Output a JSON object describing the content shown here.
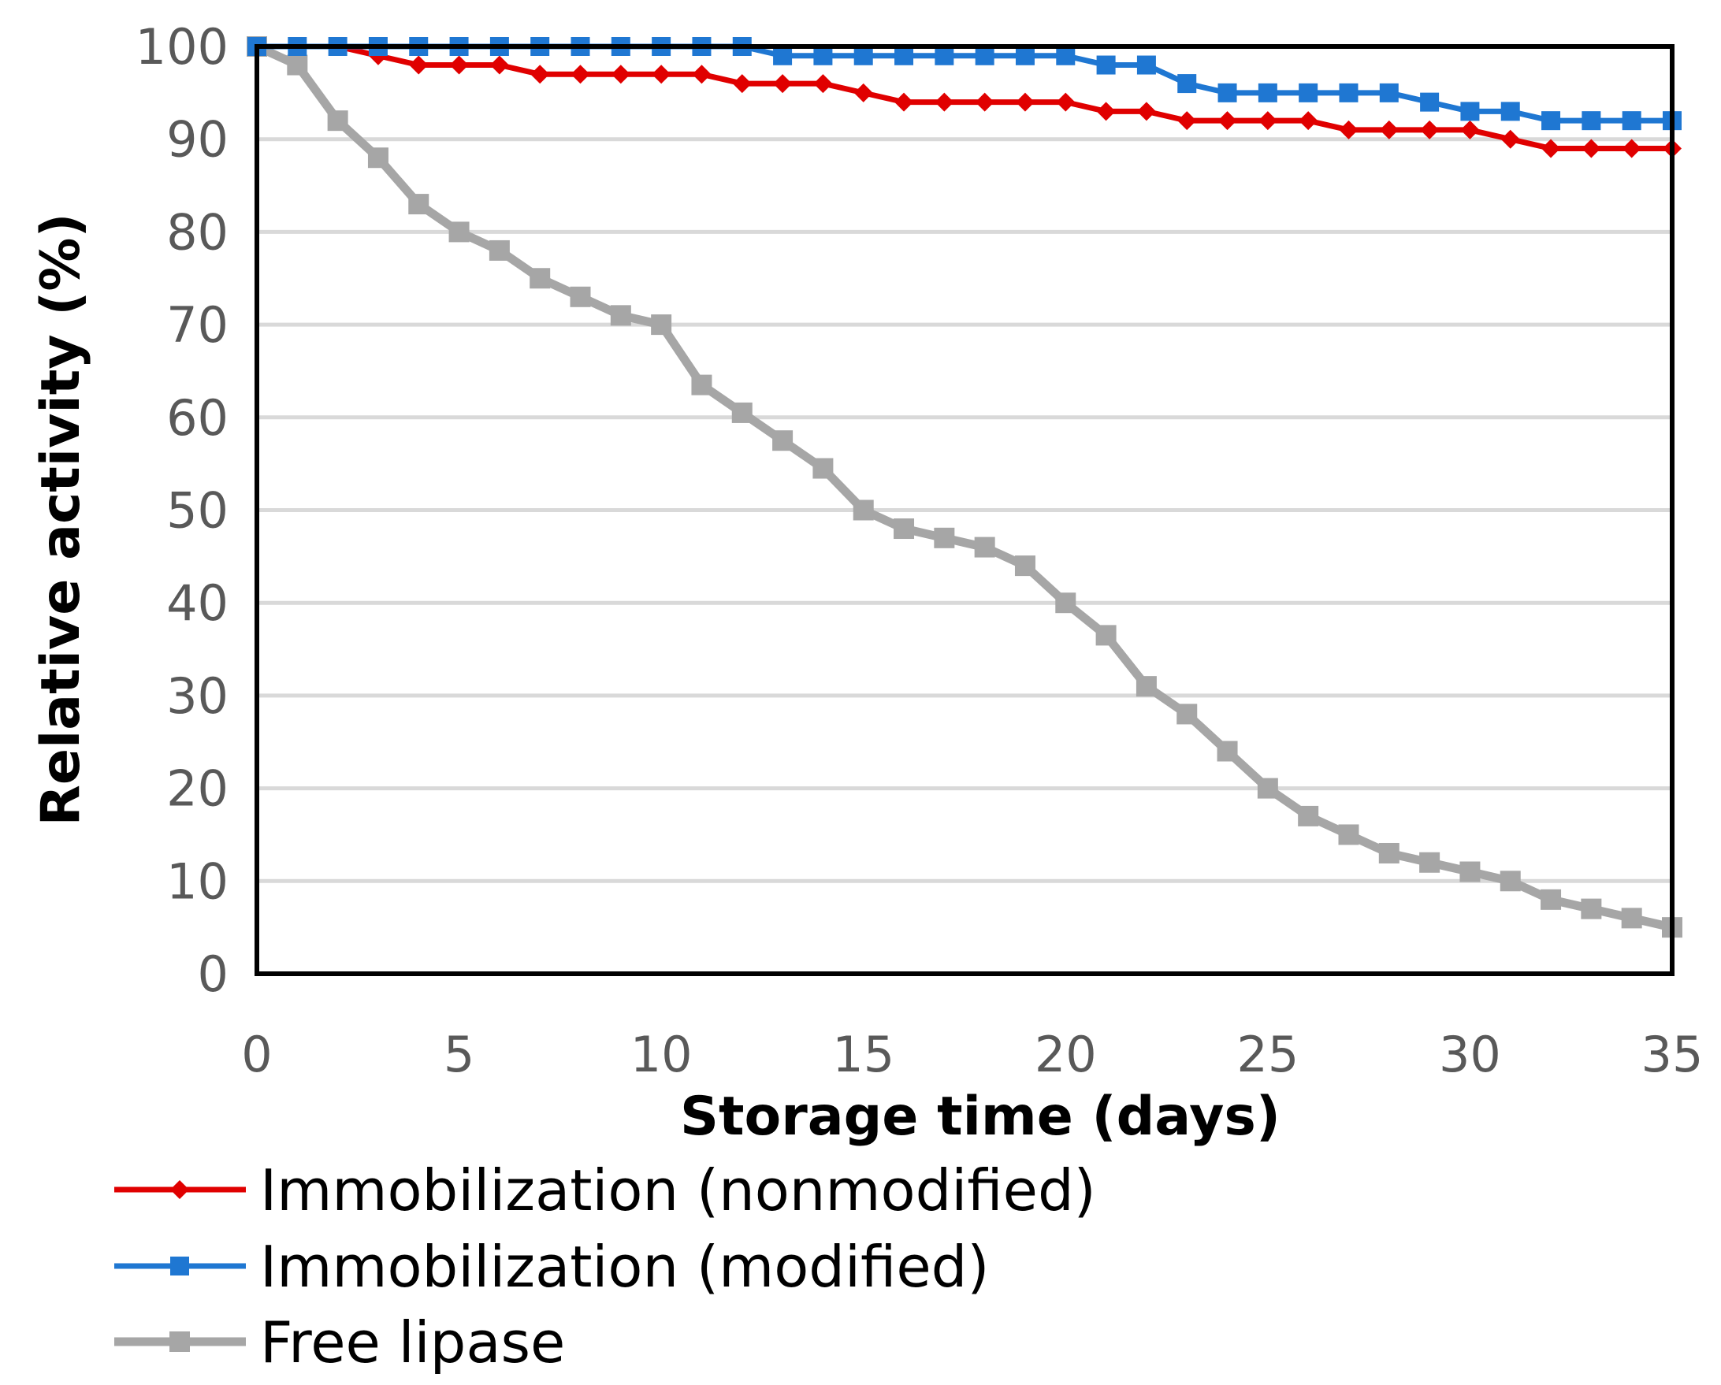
{
  "chart_data": {
    "type": "line",
    "title": "",
    "xlabel": "Storage time (days)",
    "ylabel": "Relative activity (%)",
    "xlim": [
      0,
      35
    ],
    "ylim": [
      0,
      100
    ],
    "xticks": [
      0,
      5,
      10,
      15,
      20,
      25,
      30,
      35
    ],
    "yticks": [
      0,
      10,
      20,
      30,
      40,
      50,
      60,
      70,
      80,
      90,
      100
    ],
    "grid": "horizontal",
    "legend_position": "bottom-left",
    "x": [
      0,
      1,
      2,
      3,
      4,
      5,
      6,
      7,
      8,
      9,
      10,
      11,
      12,
      13,
      14,
      15,
      16,
      17,
      18,
      19,
      20,
      21,
      22,
      23,
      24,
      25,
      26,
      27,
      28,
      29,
      30,
      31,
      32,
      33,
      34,
      35
    ],
    "series": [
      {
        "name": "Immobilization (nonmodified)",
        "color": "#e00000",
        "marker": "diamond",
        "values": [
          100,
          100,
          100,
          99,
          98,
          98,
          98,
          97,
          97,
          97,
          97,
          97,
          96,
          96,
          96,
          95,
          94,
          94,
          94,
          94,
          94,
          93,
          93,
          92,
          92,
          92,
          92,
          91,
          91,
          91,
          91,
          90,
          89,
          89,
          89,
          89
        ]
      },
      {
        "name": "Immobilization (modified)",
        "color": "#1f77d2",
        "marker": "square",
        "values": [
          100,
          100,
          100,
          100,
          100,
          100,
          100,
          100,
          100,
          100,
          100,
          100,
          100,
          99,
          99,
          99,
          99,
          99,
          99,
          99,
          99,
          98,
          98,
          96,
          95,
          95,
          95,
          95,
          95,
          94,
          93,
          93,
          92,
          92,
          92,
          92
        ]
      },
      {
        "name": "Free lipase",
        "color": "#a6a6a6",
        "marker": "square",
        "values": [
          100,
          98,
          92,
          88,
          83,
          80,
          78,
          75,
          73,
          71,
          70,
          63.5,
          60.5,
          57.5,
          54.5,
          50,
          48,
          47,
          46,
          44,
          40,
          36.5,
          31,
          28,
          24,
          20,
          17,
          15,
          13,
          12,
          11,
          10,
          8,
          7,
          6,
          5
        ]
      }
    ]
  }
}
